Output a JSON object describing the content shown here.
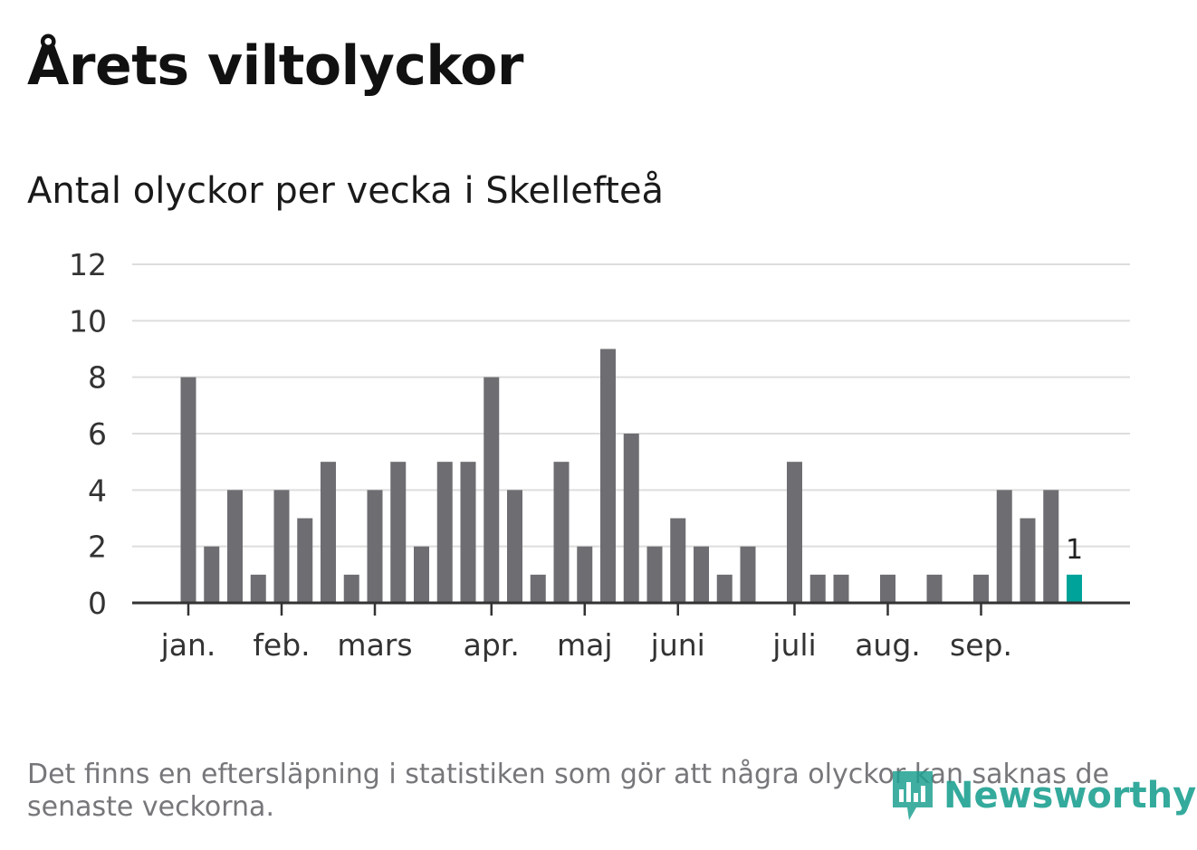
{
  "header": {
    "title": "Årets viltolyckor",
    "subtitle": "Antal olyckor per vecka i Skellefteå"
  },
  "chart_data": {
    "type": "bar",
    "title": "Årets viltolyckor",
    "subtitle": "Antal olyckor per vecka i Skellefteå",
    "xlabel": "",
    "ylabel": "",
    "ylim": [
      0,
      12
    ],
    "yticks": [
      0,
      2,
      4,
      6,
      8,
      10,
      12
    ],
    "grid": true,
    "week_start": 1,
    "values": [
      8,
      2,
      4,
      1,
      4,
      3,
      5,
      1,
      4,
      5,
      2,
      5,
      5,
      8,
      4,
      1,
      5,
      2,
      9,
      6,
      2,
      3,
      2,
      1,
      2,
      0,
      5,
      1,
      1,
      0,
      1,
      0,
      1,
      0,
      1,
      4,
      3,
      4,
      1
    ],
    "highlight_index": 38,
    "highlight_label": "1",
    "bar_color": "#6e6d72",
    "highlight_color": "#00a39a",
    "month_labels": [
      {
        "label": "jan.",
        "week": 1
      },
      {
        "label": "feb.",
        "week": 5
      },
      {
        "label": "mars",
        "week": 9
      },
      {
        "label": "apr.",
        "week": 14
      },
      {
        "label": "maj",
        "week": 18
      },
      {
        "label": "juni",
        "week": 22
      },
      {
        "label": "juli",
        "week": 27
      },
      {
        "label": "aug.",
        "week": 31
      },
      {
        "label": "sep.",
        "week": 35
      }
    ]
  },
  "footer": {
    "note": "Det finns en eftersläpning i statistiken som gör att några olyckor kan saknas de senaste veckorna.",
    "brand": "Newsworthy",
    "brand_icon": "newsworthy-logo-icon"
  }
}
